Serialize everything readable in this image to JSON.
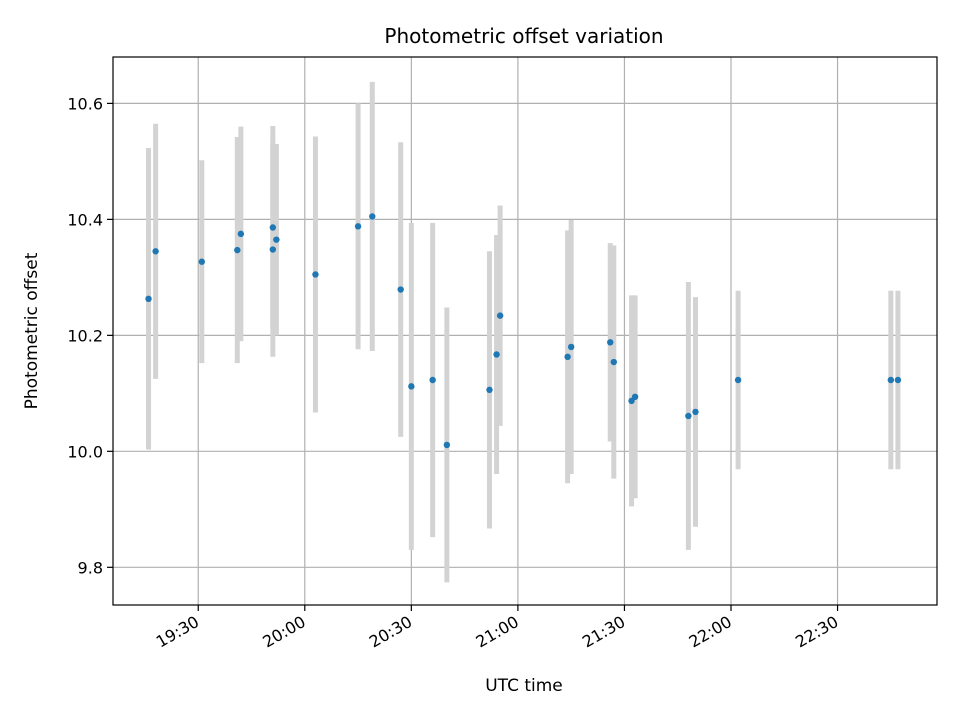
{
  "chart_data": {
    "type": "scatter",
    "title": "Photometric offset variation",
    "xlabel": "UTC time",
    "ylabel": "Photometric offset",
    "x_ticks": [
      "19:30",
      "20:00",
      "20:30",
      "21:00",
      "21:30",
      "22:00",
      "22:30"
    ],
    "y_ticks": [
      "9.8",
      "10.0",
      "10.2",
      "10.4",
      "10.6"
    ],
    "xlim": [
      "19:06",
      "22:58"
    ],
    "ylim": [
      9.735,
      10.68
    ],
    "grid": true,
    "colors": {
      "point": "#1f77b4",
      "errorbar": "#d3d3d3",
      "grid": "#b0b0b0"
    },
    "points": [
      {
        "x": "19:16",
        "y": 10.263,
        "err": 0.26
      },
      {
        "x": "19:18",
        "y": 10.345,
        "err": 0.22
      },
      {
        "x": "19:31",
        "y": 10.327,
        "err": 0.175
      },
      {
        "x": "19:41",
        "y": 10.347,
        "err": 0.195
      },
      {
        "x": "19:42",
        "y": 10.375,
        "err": 0.185
      },
      {
        "x": "19:51",
        "y": 10.386,
        "err": 0.175
      },
      {
        "x": "19:51",
        "y": 10.348,
        "err": 0.185
      },
      {
        "x": "19:52",
        "y": 10.365,
        "err": 0.165
      },
      {
        "x": "20:03",
        "y": 10.305,
        "err": 0.238
      },
      {
        "x": "20:15",
        "y": 10.388,
        "err": 0.212
      },
      {
        "x": "20:19",
        "y": 10.405,
        "err": 0.232
      },
      {
        "x": "20:27",
        "y": 10.279,
        "err": 0.254
      },
      {
        "x": "20:30",
        "y": 10.112,
        "err": 0.282
      },
      {
        "x": "20:36",
        "y": 10.123,
        "err": 0.271
      },
      {
        "x": "20:40",
        "y": 10.011,
        "err": 0.237
      },
      {
        "x": "20:52",
        "y": 10.106,
        "err": 0.239
      },
      {
        "x": "20:54",
        "y": 10.167,
        "err": 0.206
      },
      {
        "x": "20:55",
        "y": 10.234,
        "err": 0.19
      },
      {
        "x": "21:14",
        "y": 10.163,
        "err": 0.218
      },
      {
        "x": "21:15",
        "y": 10.18,
        "err": 0.219
      },
      {
        "x": "21:26",
        "y": 10.188,
        "err": 0.171
      },
      {
        "x": "21:27",
        "y": 10.154,
        "err": 0.201
      },
      {
        "x": "21:32",
        "y": 10.087,
        "err": 0.182
      },
      {
        "x": "21:33",
        "y": 10.094,
        "err": 0.175
      },
      {
        "x": "21:48",
        "y": 10.061,
        "err": 0.231
      },
      {
        "x": "21:50",
        "y": 10.068,
        "err": 0.198
      },
      {
        "x": "22:02",
        "y": 10.123,
        "err": 0.154
      },
      {
        "x": "22:45",
        "y": 10.123,
        "err": 0.154
      },
      {
        "x": "22:47",
        "y": 10.123,
        "err": 0.154
      }
    ]
  }
}
